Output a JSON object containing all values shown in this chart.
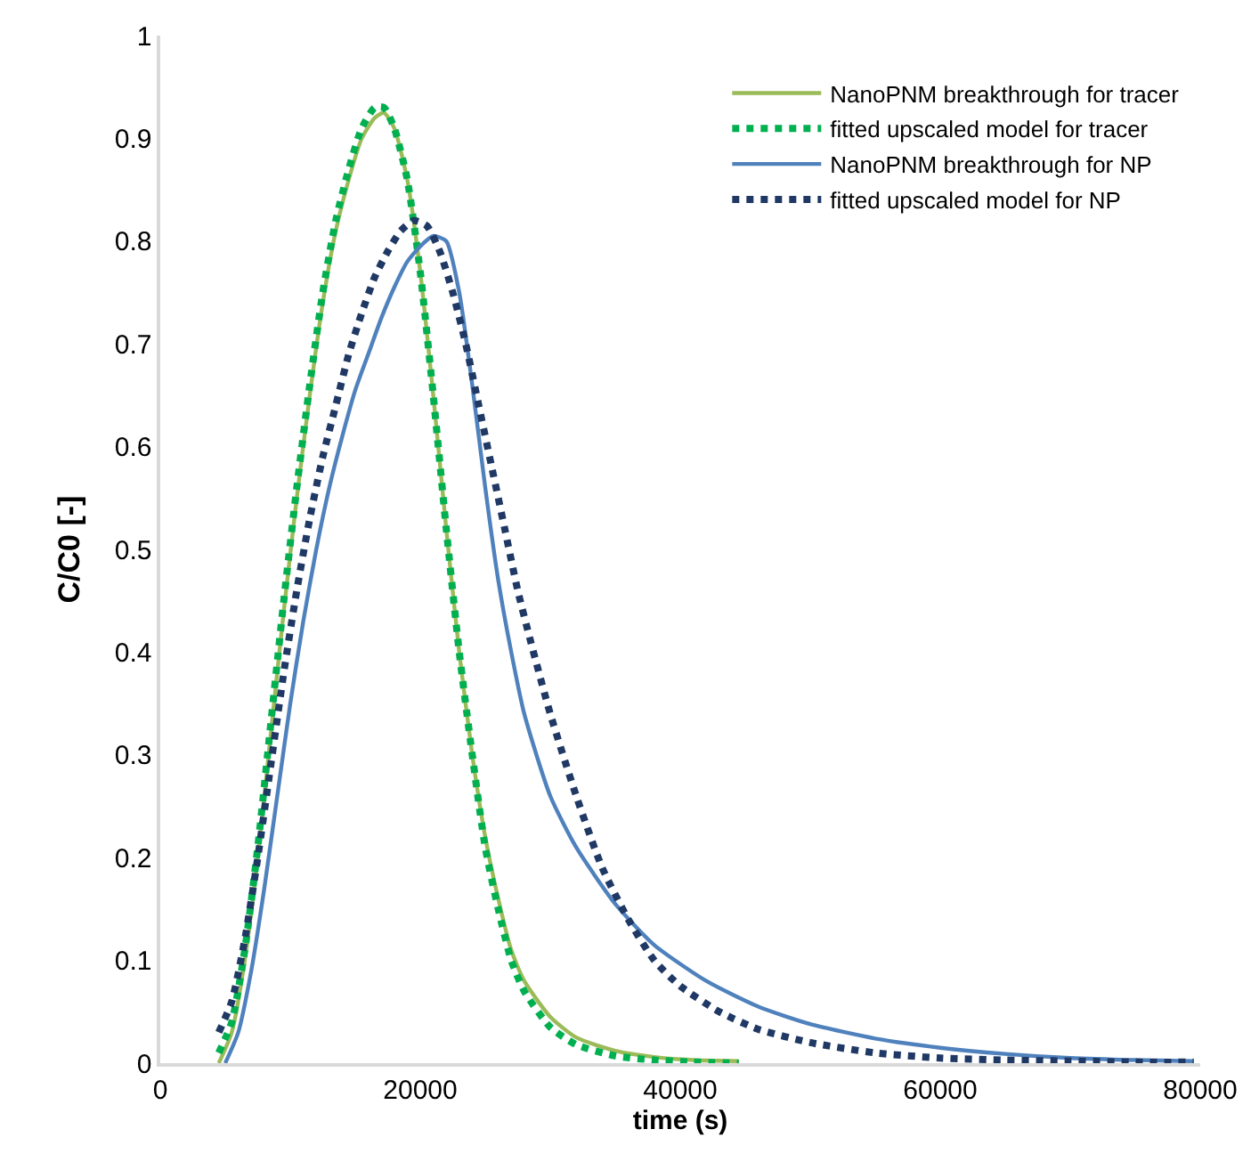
{
  "chart_data": {
    "type": "line",
    "xlabel": "time (s)",
    "ylabel": "C/C0 [-]",
    "xlim": [
      0,
      80000
    ],
    "xticks": [
      0,
      20000,
      40000,
      60000,
      80000
    ],
    "ylim": [
      0,
      1
    ],
    "yticks": [
      0,
      0.1,
      0.2,
      0.3,
      0.4,
      0.5,
      0.6,
      0.7,
      0.8,
      0.9,
      1
    ],
    "grid": false,
    "legend": "top right",
    "marker": "none",
    "series": [
      {
        "name": "NanoPNM breakthrough for tracer",
        "color": "#9bbb59",
        "line_style": "solid",
        "x": [
          4500,
          5500,
          6500,
          7500,
          8500,
          9500,
          10500,
          11500,
          12500,
          13500,
          14500,
          15500,
          16500,
          17200,
          18000,
          19000,
          20000,
          21000,
          22000,
          23000,
          24000,
          25000,
          26000,
          27000,
          28000,
          30000,
          32000,
          35000,
          38000,
          41000,
          44500
        ],
        "values": [
          0,
          0.03,
          0.1,
          0.2,
          0.32,
          0.44,
          0.55,
          0.65,
          0.74,
          0.81,
          0.86,
          0.9,
          0.92,
          0.925,
          0.91,
          0.86,
          0.77,
          0.65,
          0.52,
          0.4,
          0.3,
          0.22,
          0.16,
          0.11,
          0.08,
          0.045,
          0.025,
          0.012,
          0.006,
          0.003,
          0.002
        ]
      },
      {
        "name": "fitted upscaled model for tracer",
        "color": "#00b050",
        "line_style": "dotted",
        "x": [
          4500,
          5500,
          6500,
          7500,
          8500,
          9500,
          10500,
          11500,
          12500,
          13500,
          14500,
          15500,
          16500,
          17200,
          18000,
          19000,
          20000,
          21000,
          22000,
          23000,
          24000,
          25000,
          26000,
          27000,
          28000,
          30000,
          32000,
          35000,
          38000,
          41000,
          44500
        ],
        "values": [
          0.01,
          0.04,
          0.11,
          0.21,
          0.33,
          0.45,
          0.56,
          0.66,
          0.75,
          0.82,
          0.87,
          0.91,
          0.93,
          0.93,
          0.91,
          0.86,
          0.77,
          0.65,
          0.52,
          0.4,
          0.3,
          0.21,
          0.15,
          0.1,
          0.07,
          0.035,
          0.018,
          0.007,
          0.003,
          0.001,
          0
        ]
      },
      {
        "name": "NanoPNM breakthrough for NP",
        "color": "#4f81bd",
        "line_style": "solid",
        "x": [
          5000,
          6000,
          7000,
          8000,
          9000,
          10000,
          11000,
          12000,
          13000,
          14000,
          15000,
          16000,
          17000,
          18000,
          19000,
          20000,
          21000,
          22000,
          23000,
          24000,
          25000,
          26000,
          27000,
          28000,
          30000,
          32000,
          35000,
          38000,
          42000,
          46000,
          50000,
          55000,
          60000,
          65000,
          70000,
          75000,
          79500
        ],
        "values": [
          0,
          0.03,
          0.09,
          0.17,
          0.26,
          0.35,
          0.43,
          0.5,
          0.56,
          0.61,
          0.655,
          0.69,
          0.725,
          0.755,
          0.78,
          0.795,
          0.805,
          0.8,
          0.75,
          0.66,
          0.56,
          0.47,
          0.4,
          0.34,
          0.26,
          0.21,
          0.155,
          0.115,
          0.08,
          0.055,
          0.038,
          0.024,
          0.015,
          0.009,
          0.005,
          0.003,
          0.002
        ]
      },
      {
        "name": "fitted upscaled model for NP",
        "color": "#1f3864",
        "line_style": "dotted",
        "x": [
          4500,
          5500,
          6500,
          7500,
          8500,
          9500,
          10500,
          11500,
          12500,
          13500,
          14500,
          15500,
          16500,
          17500,
          18500,
          19500,
          20500,
          21500,
          22500,
          23500,
          24500,
          25500,
          26500,
          27500,
          28500,
          30000,
          32000,
          34000,
          36000,
          38000,
          40000,
          43000,
          46000,
          50000,
          55000,
          60000,
          65000,
          70000,
          75000,
          79500
        ],
        "values": [
          0.03,
          0.06,
          0.12,
          0.2,
          0.29,
          0.38,
          0.46,
          0.53,
          0.59,
          0.64,
          0.69,
          0.73,
          0.765,
          0.79,
          0.81,
          0.82,
          0.815,
          0.79,
          0.75,
          0.7,
          0.64,
          0.58,
          0.52,
          0.46,
          0.41,
          0.34,
          0.26,
          0.19,
          0.14,
          0.1,
          0.075,
          0.05,
          0.033,
          0.02,
          0.01,
          0.005,
          0.003,
          0.002,
          0.001,
          0.001
        ]
      }
    ]
  }
}
